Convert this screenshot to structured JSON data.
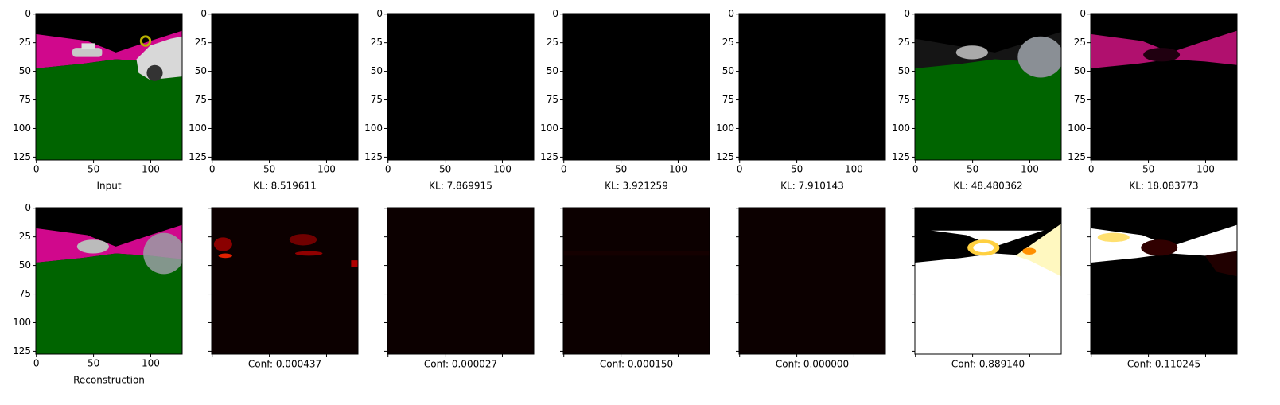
{
  "xlim": [
    -0.5,
    127.5
  ],
  "ylim": [
    127.5,
    -0.5
  ],
  "xticks": [
    0,
    50,
    100
  ],
  "yticks": [
    0,
    25,
    50,
    75,
    100,
    125
  ],
  "panels": [
    {
      "caption": "Input",
      "tick_labels": true
    },
    {
      "caption": "KL: 8.519611",
      "tick_labels": true
    },
    {
      "caption": "KL: 7.869915",
      "tick_labels": true
    },
    {
      "caption": "KL: 3.921259",
      "tick_labels": true
    },
    {
      "caption": "KL: 7.910143",
      "tick_labels": true
    },
    {
      "caption": "KL: 48.480362",
      "tick_labels": true
    },
    {
      "caption": "KL: 18.083773",
      "tick_labels": true
    },
    {
      "caption": "Reconstruction",
      "tick_labels": true
    },
    {
      "caption": "Conf: 0.000437",
      "tick_labels": false
    },
    {
      "caption": "Conf: 0.000027",
      "tick_labels": false
    },
    {
      "caption": "Conf: 0.000150",
      "tick_labels": false
    },
    {
      "caption": "Conf: 0.000000",
      "tick_labels": false
    },
    {
      "caption": "Conf: 0.889140",
      "tick_labels": false
    },
    {
      "caption": "Conf: 0.110245",
      "tick_labels": false
    }
  ]
}
